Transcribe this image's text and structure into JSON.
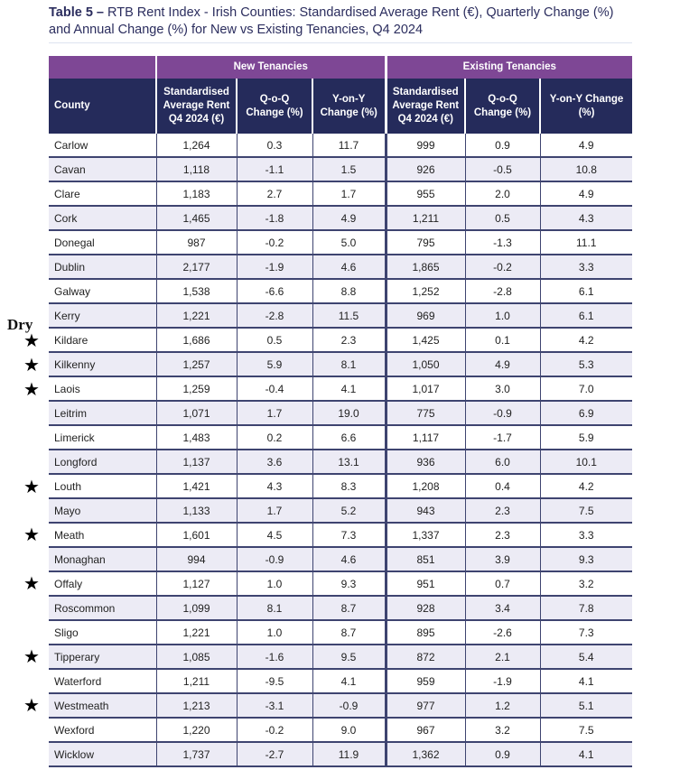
{
  "title": {
    "prefix": "Table 5 –",
    "text": " RTB Rent Index - Irish Counties: Standardised Average Rent (€), Quarterly Change (%) and Annual Change (%) for New vs Existing Tenancies, Q4 2024"
  },
  "groups": {
    "new": "New Tenancies",
    "existing": "Existing Tenancies"
  },
  "headers": [
    "County",
    "Standardised Average Rent Q4 2024 (€)",
    "Q-o-Q Change (%)",
    "Y-on-Y Change (%)",
    "Standardised Average Rent Q4 2024 (€)",
    "Q-o-Q Change (%)",
    "Y-on-Y Change (%)"
  ],
  "annotation": {
    "label": "Dry",
    "marked_counties": [
      "Kildare",
      "Kilkenny",
      "Laois",
      "Louth",
      "Meath",
      "Offaly",
      "Tipperary",
      "Westmeath"
    ]
  },
  "rows": [
    [
      "Carlow",
      "1,264",
      "0.3",
      "11.7",
      "999",
      "0.9",
      "4.9"
    ],
    [
      "Cavan",
      "1,118",
      "-1.1",
      "1.5",
      "926",
      "-0.5",
      "10.8"
    ],
    [
      "Clare",
      "1,183",
      "2.7",
      "1.7",
      "955",
      "2.0",
      "4.9"
    ],
    [
      "Cork",
      "1,465",
      "-1.8",
      "4.9",
      "1,211",
      "0.5",
      "4.3"
    ],
    [
      "Donegal",
      "987",
      "-0.2",
      "5.0",
      "795",
      "-1.3",
      "11.1"
    ],
    [
      "Dublin",
      "2,177",
      "-1.9",
      "4.6",
      "1,865",
      "-0.2",
      "3.3"
    ],
    [
      "Galway",
      "1,538",
      "-6.6",
      "8.8",
      "1,252",
      "-2.8",
      "6.1"
    ],
    [
      "Kerry",
      "1,221",
      "-2.8",
      "11.5",
      "969",
      "1.0",
      "6.1"
    ],
    [
      "Kildare",
      "1,686",
      "0.5",
      "2.3",
      "1,425",
      "0.1",
      "4.2"
    ],
    [
      "Kilkenny",
      "1,257",
      "5.9",
      "8.1",
      "1,050",
      "4.9",
      "5.3"
    ],
    [
      "Laois",
      "1,259",
      "-0.4",
      "4.1",
      "1,017",
      "3.0",
      "7.0"
    ],
    [
      "Leitrim",
      "1,071",
      "1.7",
      "19.0",
      "775",
      "-0.9",
      "6.9"
    ],
    [
      "Limerick",
      "1,483",
      "0.2",
      "6.6",
      "1,117",
      "-1.7",
      "5.9"
    ],
    [
      "Longford",
      "1,137",
      "3.6",
      "13.1",
      "936",
      "6.0",
      "10.1"
    ],
    [
      "Louth",
      "1,421",
      "4.3",
      "8.3",
      "1,208",
      "0.4",
      "4.2"
    ],
    [
      "Mayo",
      "1,133",
      "1.7",
      "5.2",
      "943",
      "2.3",
      "7.5"
    ],
    [
      "Meath",
      "1,601",
      "4.5",
      "7.3",
      "1,337",
      "2.3",
      "3.3"
    ],
    [
      "Monaghan",
      "994",
      "-0.9",
      "4.6",
      "851",
      "3.9",
      "9.3"
    ],
    [
      "Offaly",
      "1,127",
      "1.0",
      "9.3",
      "951",
      "0.7",
      "3.2"
    ],
    [
      "Roscommon",
      "1,099",
      "8.1",
      "8.7",
      "928",
      "3.4",
      "7.8"
    ],
    [
      "Sligo",
      "1,221",
      "1.0",
      "8.7",
      "895",
      "-2.6",
      "7.3"
    ],
    [
      "Tipperary",
      "1,085",
      "-1.6",
      "9.5",
      "872",
      "2.1",
      "5.4"
    ],
    [
      "Waterford",
      "1,211",
      "-9.5",
      "4.1",
      "959",
      "-1.9",
      "4.1"
    ],
    [
      "Westmeath",
      "1,213",
      "-3.1",
      "-0.9",
      "977",
      "1.2",
      "5.1"
    ],
    [
      "Wexford",
      "1,220",
      "-0.2",
      "9.0",
      "967",
      "3.2",
      "7.5"
    ],
    [
      "Wicklow",
      "1,737",
      "-2.7",
      "11.9",
      "1,362",
      "0.9",
      "4.1"
    ]
  ]
}
